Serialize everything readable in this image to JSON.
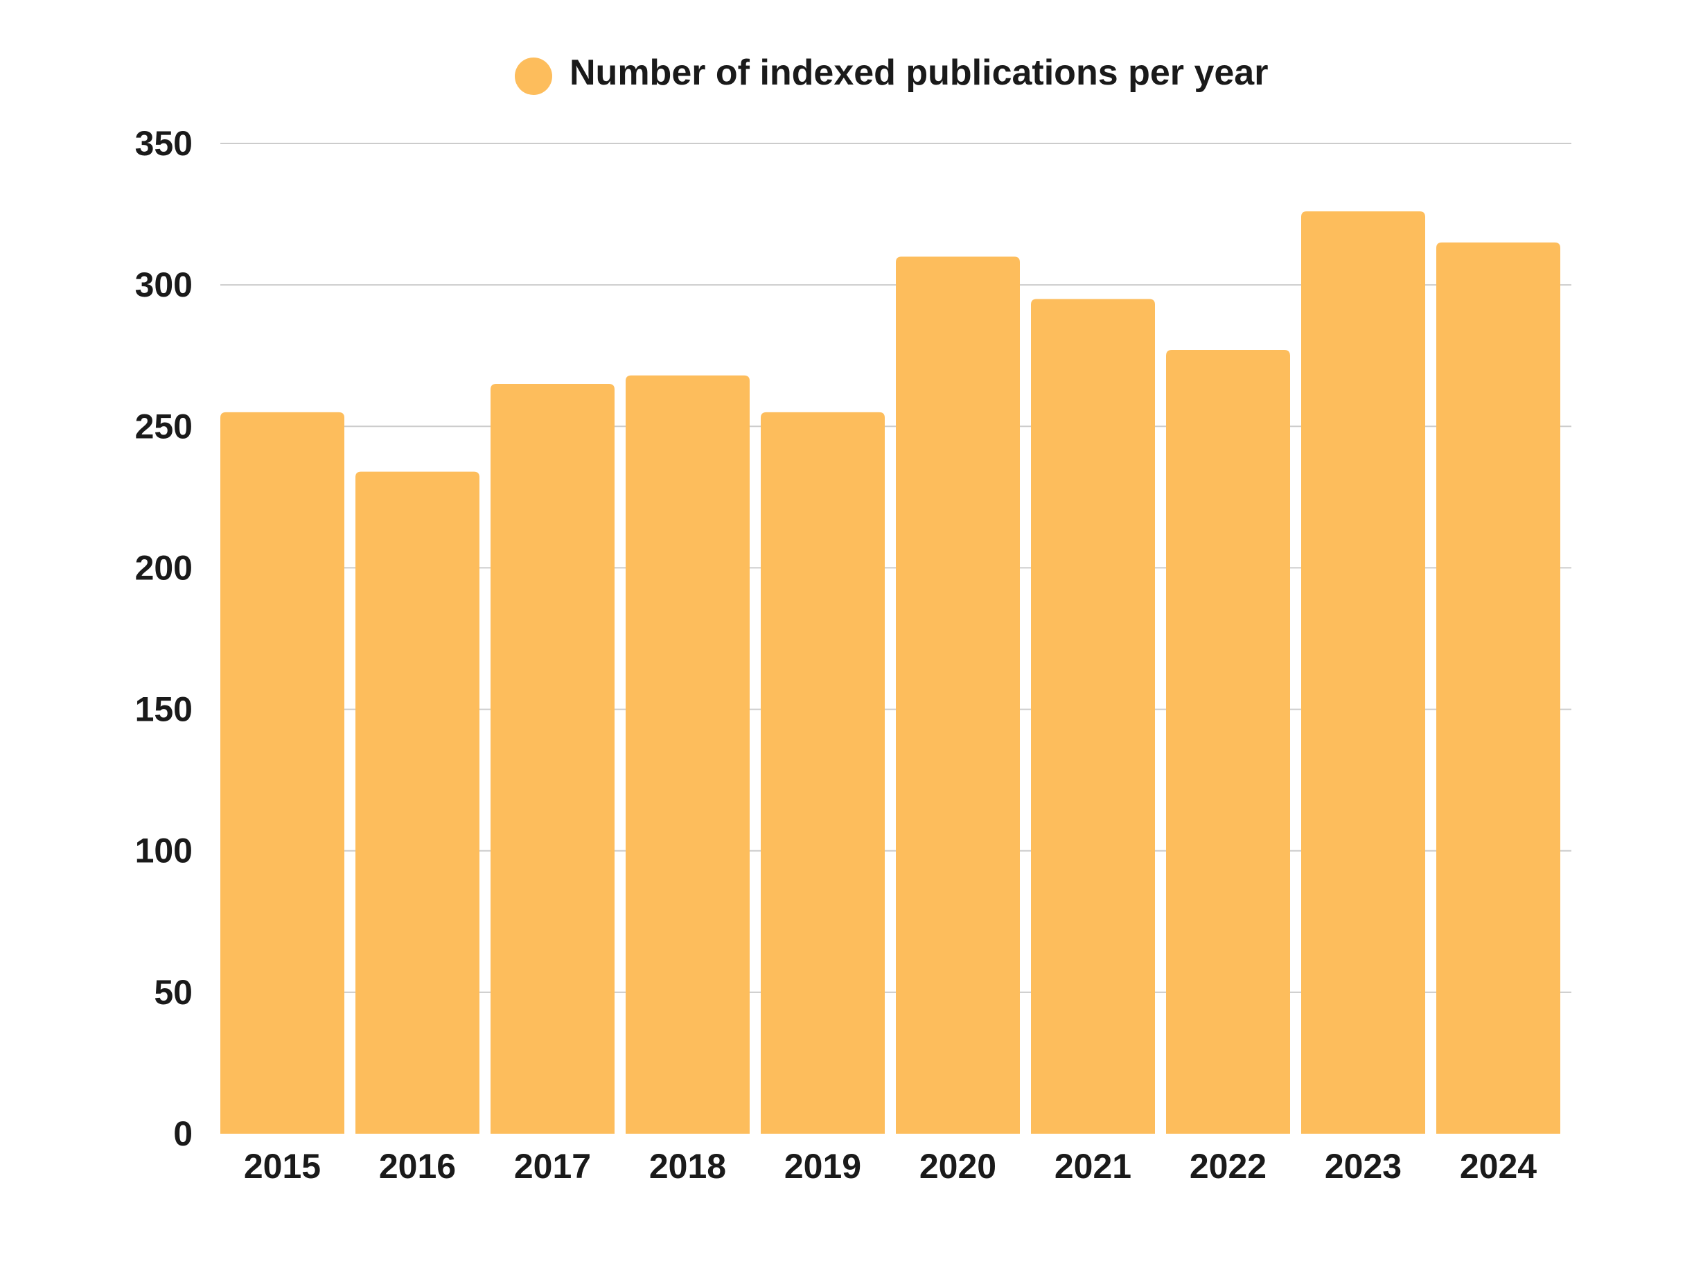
{
  "chart_data": {
    "type": "bar",
    "title": "",
    "xlabel": "",
    "ylabel": "",
    "categories": [
      "2015",
      "2016",
      "2017",
      "2018",
      "2019",
      "2020",
      "2021",
      "2022",
      "2023",
      "2024"
    ],
    "series": [
      {
        "name": "Number of indexed publications per year",
        "values": [
          255,
          234,
          265,
          268,
          255,
          310,
          295,
          277,
          326,
          315
        ],
        "color": "#FDBD5C"
      }
    ],
    "ylim": [
      0,
      350
    ],
    "yticks": [
      "0",
      "50",
      "100",
      "150",
      "200",
      "250",
      "300",
      "350"
    ],
    "grid": true,
    "legend": "top-center"
  }
}
